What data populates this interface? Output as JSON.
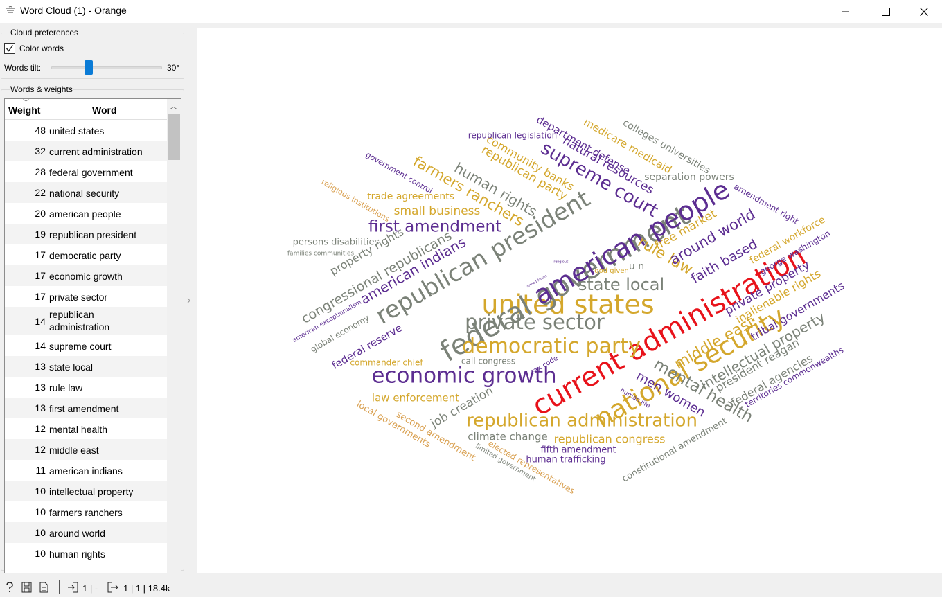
{
  "window": {
    "title": "Word Cloud (1) - Orange"
  },
  "preferences": {
    "title": "Cloud preferences",
    "color_words_label": "Color words",
    "color_words_checked": true,
    "tilt_label": "Words tilt:",
    "tilt_value": "30°",
    "tilt_fraction": 0.33
  },
  "words_table": {
    "title": "Words & weights",
    "col_weight": "Weight",
    "col_word": "Word",
    "rows": [
      {
        "weight": "48",
        "word": "united states"
      },
      {
        "weight": "32",
        "word": "current administration"
      },
      {
        "weight": "28",
        "word": "federal government"
      },
      {
        "weight": "22",
        "word": "national security"
      },
      {
        "weight": "20",
        "word": "american people"
      },
      {
        "weight": "19",
        "word": "republican president"
      },
      {
        "weight": "17",
        "word": "democratic party"
      },
      {
        "weight": "17",
        "word": "economic growth"
      },
      {
        "weight": "17",
        "word": "private sector"
      },
      {
        "weight": "14",
        "word": "republican administration"
      },
      {
        "weight": "14",
        "word": "supreme court"
      },
      {
        "weight": "13",
        "word": "state local"
      },
      {
        "weight": "13",
        "word": "rule law"
      },
      {
        "weight": "13",
        "word": "first amendment"
      },
      {
        "weight": "12",
        "word": "mental health"
      },
      {
        "weight": "12",
        "word": "middle east"
      },
      {
        "weight": "11",
        "word": "american indians"
      },
      {
        "weight": "10",
        "word": "intellectual property"
      },
      {
        "weight": "10",
        "word": "farmers ranchers"
      },
      {
        "weight": "10",
        "word": "around world"
      },
      {
        "weight": "10",
        "word": "human rights"
      }
    ]
  },
  "colors": {
    "purple": "#5c2d91",
    "gold": "#d4a72c",
    "gray": "#7b8278",
    "red": "#e8121a",
    "tan": "#d9a050"
  },
  "cloud_words": [
    {
      "t": "united states",
      "c": "#d4a72c"
    },
    {
      "t": "current administration",
      "c": "#e8121a"
    },
    {
      "t": "federal government",
      "c": "#7b8278"
    },
    {
      "t": "national security",
      "c": "#d4a72c"
    },
    {
      "t": "american people",
      "c": "#5c2d91"
    },
    {
      "t": "republican president",
      "c": "#7b8278"
    },
    {
      "t": "democratic party",
      "c": "#d4a72c"
    },
    {
      "t": "economic growth",
      "c": "#5c2d91"
    },
    {
      "t": "private sector",
      "c": "#7b8278"
    },
    {
      "t": "republican administration",
      "c": "#d4a72c"
    },
    {
      "t": "supreme court",
      "c": "#5c2d91"
    },
    {
      "t": "state local",
      "c": "#7b8278"
    },
    {
      "t": "rule law",
      "c": "#d4a72c"
    },
    {
      "t": "first amendment",
      "c": "#5c2d91"
    },
    {
      "t": "mental health",
      "c": "#7b8278"
    },
    {
      "t": "middle east",
      "c": "#d4a72c"
    },
    {
      "t": "american indians",
      "c": "#5c2d91"
    },
    {
      "t": "intellectual property",
      "c": "#7b8278"
    },
    {
      "t": "farmers ranchers",
      "c": "#d4a72c"
    },
    {
      "t": "around world",
      "c": "#5c2d91"
    },
    {
      "t": "human rights",
      "c": "#7b8278"
    },
    {
      "t": "congressional republicans",
      "c": "#7b8278"
    },
    {
      "t": "faith based",
      "c": "#5c2d91"
    },
    {
      "t": "men women",
      "c": "#5c2d91"
    },
    {
      "t": "republican party",
      "c": "#d4a72c"
    },
    {
      "t": "private property",
      "c": "#5c2d91"
    },
    {
      "t": "job creation",
      "c": "#7b8278"
    },
    {
      "t": "free market",
      "c": "#d4a72c"
    },
    {
      "t": "natural resources",
      "c": "#5c2d91"
    },
    {
      "t": "small business",
      "c": "#d4a72c"
    },
    {
      "t": "tribal governments",
      "c": "#5c2d91"
    },
    {
      "t": "department defense",
      "c": "#5c2d91"
    },
    {
      "t": "medicare medicaid",
      "c": "#d4a72c"
    },
    {
      "t": "colleges universities",
      "c": "#7b8278"
    },
    {
      "t": "community banks",
      "c": "#d4a72c"
    },
    {
      "t": "separation powers",
      "c": "#7b8278"
    },
    {
      "t": "federal workforce",
      "c": "#d4a72c"
    },
    {
      "t": "george washington",
      "c": "#5c2d91"
    },
    {
      "t": "inalienable rights",
      "c": "#d4a72c"
    },
    {
      "t": "president reagan",
      "c": "#7b8278"
    },
    {
      "t": "federal agencies",
      "c": "#7b8278"
    },
    {
      "t": "territories commonwealths",
      "c": "#5c2d91"
    },
    {
      "t": "property rights",
      "c": "#7b8278"
    },
    {
      "t": "federal reserve",
      "c": "#5c2d91"
    },
    {
      "t": "law enforcement",
      "c": "#d4a72c"
    },
    {
      "t": "trade agreements",
      "c": "#d4a72c"
    },
    {
      "t": "climate change",
      "c": "#7b8278"
    },
    {
      "t": "republican congress",
      "c": "#d4a72c"
    },
    {
      "t": "fifth amendment",
      "c": "#5c2d91"
    },
    {
      "t": "human trafficking",
      "c": "#5c2d91"
    },
    {
      "t": "constitutional amendment",
      "c": "#7b8278"
    },
    {
      "t": "local governments",
      "c": "#d9a050"
    },
    {
      "t": "second amendment",
      "c": "#d9a050"
    },
    {
      "t": "limited government",
      "c": "#7b8278"
    },
    {
      "t": "elected representatives",
      "c": "#d9a050"
    },
    {
      "t": "persons disabilities",
      "c": "#7b8278"
    },
    {
      "t": "families communities",
      "c": "#7b8278"
    },
    {
      "t": "religious institutions",
      "c": "#d9a050"
    },
    {
      "t": "government control",
      "c": "#5c2d91"
    },
    {
      "t": "republican legislation",
      "c": "#5c2d91"
    },
    {
      "t": "amendment right",
      "c": "#5c2d91"
    },
    {
      "t": "american exceptionalism",
      "c": "#5c2d91"
    },
    {
      "t": "global economy",
      "c": "#7b8278"
    },
    {
      "t": "commander chief",
      "c": "#d4a72c"
    },
    {
      "t": "call congress",
      "c": "#7b8278"
    },
    {
      "t": "tax code",
      "c": "#5c2d91"
    },
    {
      "t": "human life",
      "c": "#5c2d91"
    },
    {
      "t": "god given",
      "c": "#d4a72c"
    },
    {
      "t": "u n",
      "c": "#7b8278"
    },
    {
      "t": "armed forces",
      "c": "#5c2d91"
    },
    {
      "t": "religious",
      "c": "#5c2d91"
    }
  ],
  "status": {
    "input_count": "1 | -",
    "output_count": "1 | 1 | 18.4k"
  }
}
